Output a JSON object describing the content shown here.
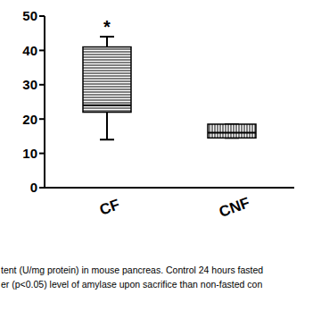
{
  "chart_data": {
    "type": "box",
    "categories": [
      "CF",
      "CNF"
    ],
    "boxes": [
      {
        "min": 14,
        "q1": 22,
        "median": 24,
        "q3": 41,
        "max": 44
      },
      {
        "min": 14.5,
        "q1": 14.5,
        "median": 16,
        "q3": 18.5,
        "max": 18.5
      }
    ],
    "annotations": [
      {
        "category": "CF",
        "text": "*"
      }
    ],
    "ylim": [
      0,
      50
    ],
    "yticks": [
      0,
      10,
      20,
      30,
      40,
      50
    ],
    "color": "#000000",
    "caption": [
      "tent (U/mg protein) in mouse pancreas. Control 24 hours fasted",
      "er (p<0.05) level of amylase upon sacrifice than non-fasted con"
    ]
  }
}
